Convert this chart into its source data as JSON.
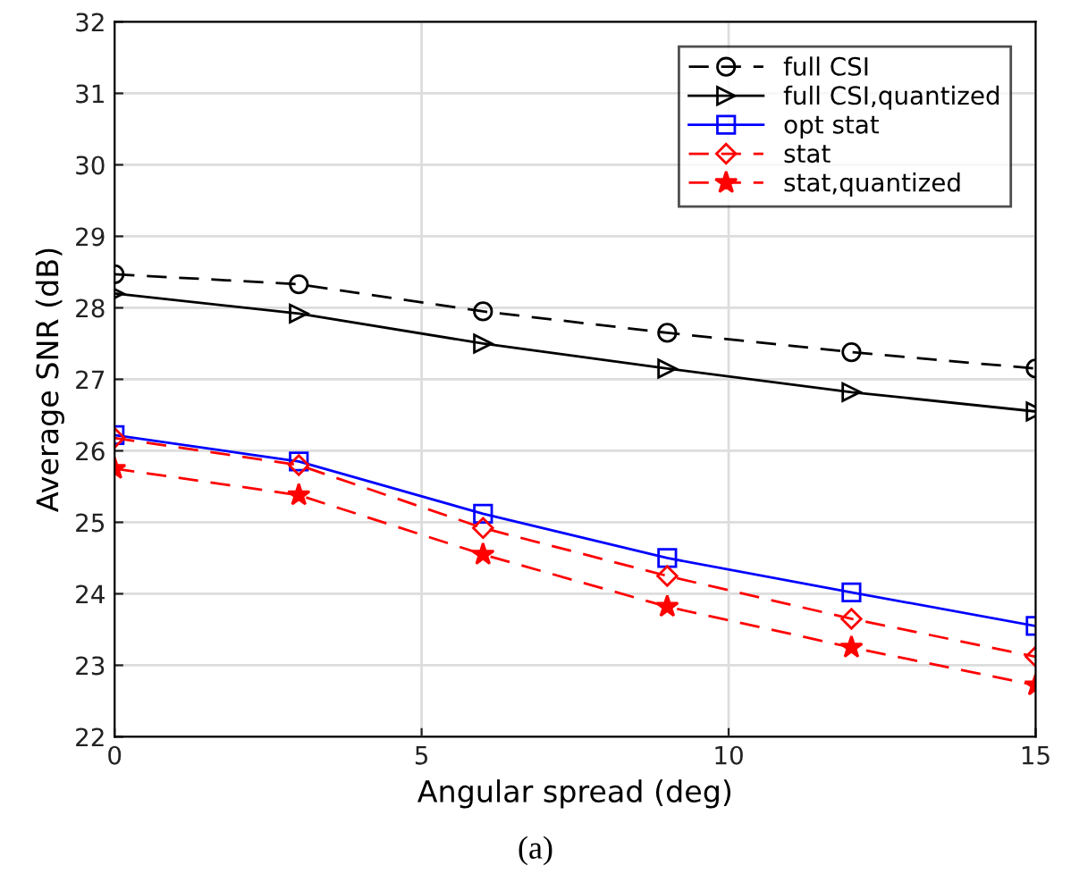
{
  "chart_data": {
    "type": "line",
    "xlabel": "Angular spread (deg)",
    "ylabel": "Average SNR (dB)",
    "x": [
      0,
      3,
      6,
      9,
      12,
      15
    ],
    "series": [
      {
        "name": "full CSI",
        "color": "#000000",
        "marker": "circle",
        "line_style": "dashed",
        "values": [
          28.47,
          28.33,
          27.95,
          27.65,
          27.38,
          27.15
        ]
      },
      {
        "name": "full CSI,quantized",
        "color": "#000000",
        "marker": "triangle",
        "line_style": "solid",
        "values": [
          28.2,
          27.92,
          27.5,
          27.15,
          26.82,
          26.55
        ]
      },
      {
        "name": "opt stat",
        "color": "#0000ff",
        "marker": "square",
        "line_style": "solid",
        "values": [
          26.22,
          25.85,
          25.12,
          24.5,
          24.02,
          23.55
        ]
      },
      {
        "name": "stat",
        "color": "#ff0000",
        "marker": "diamond",
        "line_style": "dashed",
        "values": [
          26.18,
          25.8,
          24.92,
          24.25,
          23.65,
          23.12
        ]
      },
      {
        "name": "stat,quantized",
        "color": "#ff0000",
        "marker": "star",
        "line_style": "dashed",
        "values": [
          25.75,
          25.38,
          24.55,
          23.82,
          23.25,
          22.72
        ]
      }
    ],
    "xlim": [
      0,
      15
    ],
    "xticks": [
      0,
      5,
      10,
      15
    ],
    "ylim": [
      22,
      32
    ],
    "yticks": [
      22,
      23,
      24,
      25,
      26,
      27,
      28,
      29,
      30,
      31,
      32
    ],
    "grid": true,
    "legend": "top right",
    "annotations": [
      "(a)"
    ]
  }
}
